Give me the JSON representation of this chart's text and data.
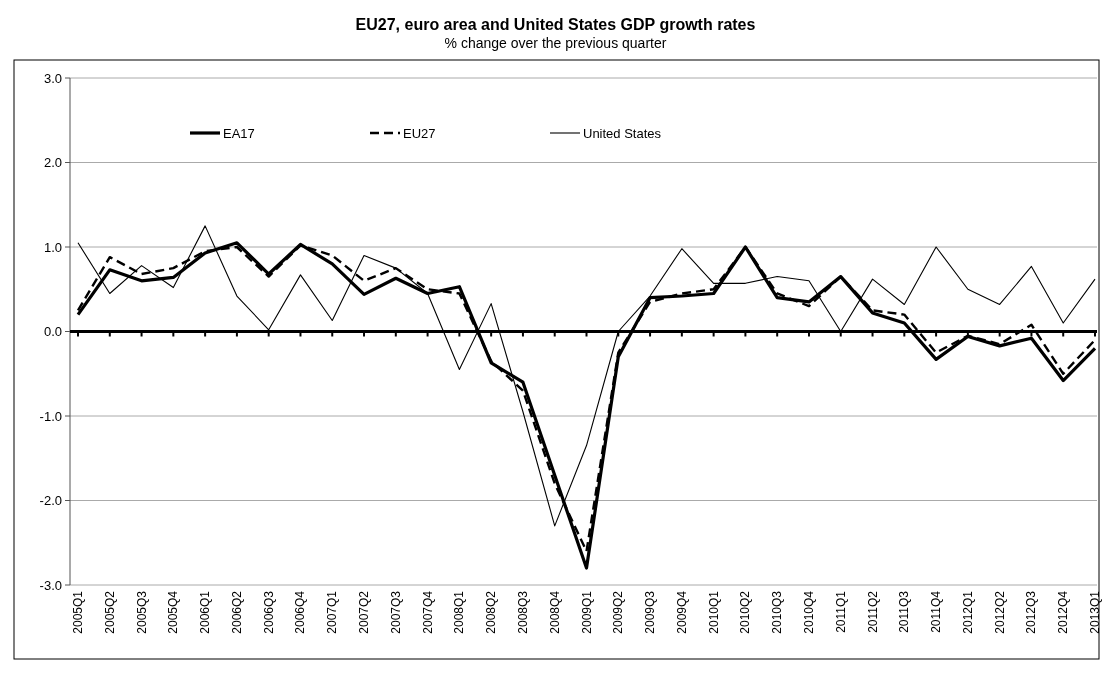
{
  "chart_data": {
    "type": "line",
    "title": "EU27, euro area and United States GDP growth rates",
    "subtitle": "% change over the previous quarter",
    "categories": [
      "2005Q1",
      "2005Q2",
      "2005Q3",
      "2005Q4",
      "2006Q1",
      "2006Q2",
      "2006Q3",
      "2006Q4",
      "2007Q1",
      "2007Q2",
      "2007Q3",
      "2007Q4",
      "2008Q1",
      "2008Q2",
      "2008Q3",
      "2008Q4",
      "2009Q1",
      "2009Q2",
      "2009Q3",
      "2009Q4",
      "2010Q1",
      "2010Q2",
      "2010Q3",
      "2010Q4",
      "2011Q1",
      "2011Q2",
      "2011Q3",
      "2011Q4",
      "2012Q1",
      "2012Q2",
      "2012Q3",
      "2012Q4",
      "2013Q1"
    ],
    "series": [
      {
        "name": "EA17",
        "color": "#000000",
        "line_style": "solid",
        "values": [
          0.2,
          0.73,
          0.6,
          0.64,
          0.93,
          1.05,
          0.68,
          1.03,
          0.8,
          0.44,
          0.63,
          0.45,
          0.53,
          -0.37,
          -0.6,
          -1.7,
          -2.8,
          -0.3,
          0.4,
          0.42,
          0.45,
          1.0,
          0.4,
          0.35,
          0.65,
          0.22,
          0.1,
          -0.33,
          -0.06,
          -0.17,
          -0.08,
          -0.58,
          -0.2
        ]
      },
      {
        "name": "EU27",
        "color": "#000000",
        "line_style": "dashed",
        "values": [
          0.25,
          0.88,
          0.68,
          0.75,
          0.95,
          1.0,
          0.65,
          1.02,
          0.9,
          0.6,
          0.75,
          0.5,
          0.45,
          -0.35,
          -0.7,
          -1.8,
          -2.6,
          -0.25,
          0.35,
          0.45,
          0.5,
          1.0,
          0.45,
          0.3,
          0.65,
          0.25,
          0.2,
          -0.25,
          -0.05,
          -0.15,
          0.08,
          -0.5,
          -0.1
        ]
      },
      {
        "name": "United States",
        "color": "#000000",
        "line_style": "solid",
        "values": [
          1.05,
          0.45,
          0.78,
          0.52,
          1.25,
          0.42,
          0.02,
          0.67,
          0.13,
          0.9,
          0.75,
          0.45,
          -0.45,
          0.33,
          -0.95,
          -2.3,
          -1.35,
          0.0,
          0.42,
          0.98,
          0.57,
          0.57,
          0.65,
          0.6,
          0.0,
          0.62,
          0.32,
          1.0,
          0.5,
          0.32,
          0.77,
          0.1,
          0.62
        ]
      }
    ],
    "ylim": [
      -3,
      3
    ],
    "yticks": [
      {
        "value": -3,
        "label": "-3.0"
      },
      {
        "value": -2,
        "label": "-2.0"
      },
      {
        "value": -1,
        "label": "-1.0"
      },
      {
        "value": 0,
        "label": "0.0"
      },
      {
        "value": 1,
        "label": "1.0"
      },
      {
        "value": 2,
        "label": "2.0"
      },
      {
        "value": 3,
        "label": "3.0"
      }
    ],
    "grid": "y",
    "legend": "top left"
  }
}
